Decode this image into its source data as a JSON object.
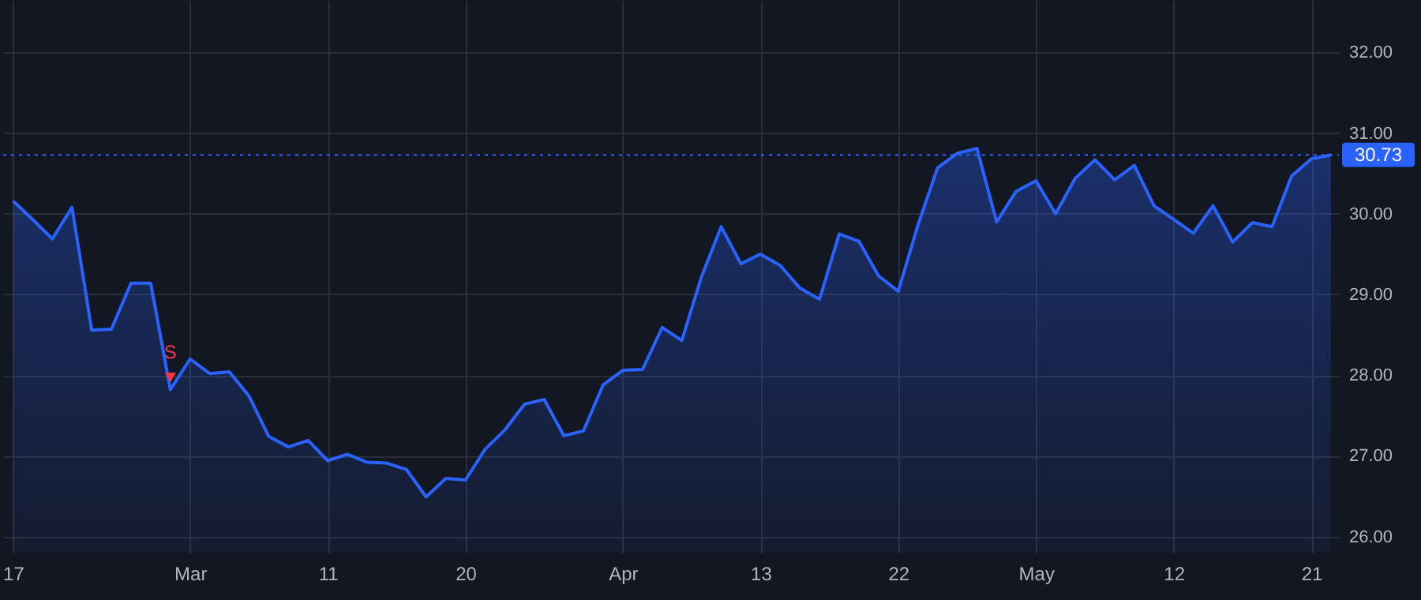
{
  "chart_data": {
    "type": "area",
    "categories": [
      "17",
      null,
      null,
      null,
      null,
      null,
      null,
      null,
      null,
      "Mar",
      null,
      null,
      null,
      null,
      null,
      null,
      "11",
      null,
      null,
      null,
      null,
      null,
      null,
      "20",
      null,
      null,
      null,
      null,
      null,
      null,
      null,
      "Apr",
      null,
      null,
      null,
      null,
      null,
      null,
      "13",
      null,
      null,
      null,
      null,
      null,
      null,
      "22",
      null,
      null,
      null,
      null,
      null,
      null,
      "May",
      null,
      null,
      null,
      null,
      null,
      null,
      "12",
      null,
      null,
      null,
      null,
      null,
      null,
      "21",
      null
    ],
    "series": [
      {
        "type": "scatter",
        "marker": "triangle",
        "color": "#f23645",
        "values": [
          null,
          null,
          null,
          null,
          null,
          null,
          null,
          null,
          27.97,
          null,
          null,
          null,
          null,
          null,
          null,
          null,
          null,
          null,
          null,
          null,
          null,
          null,
          null,
          null,
          null,
          null,
          null,
          null,
          null,
          null,
          null,
          null,
          null,
          null,
          null,
          null,
          null,
          null,
          null,
          null,
          null,
          null,
          null,
          null,
          null,
          null,
          null,
          null,
          null,
          null,
          null,
          null,
          null,
          null,
          null,
          null,
          null,
          null,
          null,
          null,
          null,
          null,
          null,
          null,
          null,
          null,
          null,
          null
        ]
      },
      {
        "color": "#2962ff",
        "values": [
          30.16,
          29.93,
          29.69,
          30.08,
          28.56,
          28.57,
          29.14,
          29.14,
          27.82,
          28.2,
          28.02,
          28.04,
          27.74,
          27.24,
          27.11,
          27.19,
          26.94,
          27.02,
          26.92,
          26.91,
          26.83,
          26.49,
          26.72,
          26.7,
          27.08,
          27.32,
          27.64,
          27.7,
          27.25,
          27.31,
          27.88,
          28.06,
          28.07,
          28.59,
          28.43,
          29.22,
          29.84,
          29.38,
          29.5,
          29.36,
          29.08,
          28.94,
          29.75,
          29.66,
          29.23,
          29.04,
          29.86,
          30.57,
          30.75,
          30.81,
          29.9,
          30.28,
          30.41,
          30.0,
          30.44,
          30.67,
          30.42,
          30.6,
          30.1,
          29.93,
          29.76,
          30.1,
          29.65,
          29.89,
          29.84,
          30.47,
          30.68,
          30.73
        ]
      }
    ],
    "ylim": [
      25.8,
      32.65
    ],
    "yticks": [
      {
        "value": 26,
        "label": "26.00"
      },
      {
        "value": 27,
        "label": "27.00"
      },
      {
        "value": 28,
        "label": "28.00"
      },
      {
        "value": 29,
        "label": "29.00"
      },
      {
        "value": 30,
        "label": "30.00"
      },
      {
        "value": 31,
        "label": "31.00"
      },
      {
        "value": 32,
        "label": "32.00"
      }
    ],
    "ref_lines": [
      {
        "axis": "y",
        "value": 30.73,
        "label": "30.73",
        "color": "#2962ff",
        "line_style": "dotted"
      }
    ],
    "annotations": [
      "S"
    ],
    "grid": true,
    "marker": "none",
    "line_style": "solid"
  }
}
